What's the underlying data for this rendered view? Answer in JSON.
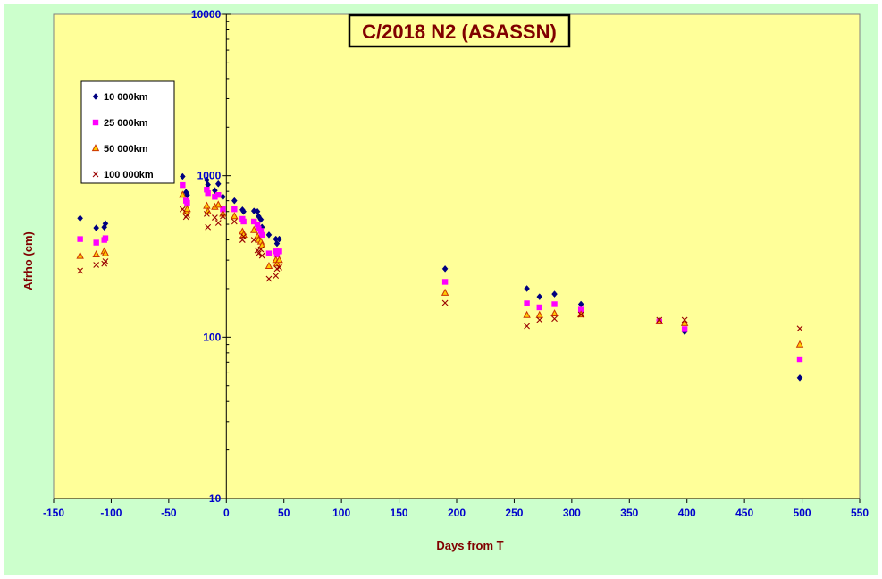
{
  "chart_data": {
    "type": "scatter",
    "title": "C/2018 N2 (ASASSN)",
    "xlabel": "Days from  T",
    "ylabel": "Afrho (cm)",
    "xlim": [
      -150,
      550
    ],
    "ylim": [
      10,
      10000
    ],
    "y_scale": "log",
    "x_ticks": [
      "-150",
      "-100",
      "-50",
      "0",
      "50",
      "100",
      "150",
      "200",
      "250",
      "300",
      "350",
      "400",
      "450",
      "500",
      "550"
    ],
    "y_ticks": [
      "10",
      "100",
      "1000",
      "10000"
    ],
    "grid": false,
    "legend_position": "top-left",
    "colors": {
      "plot_bg": "#ffff99",
      "outer_bg": "#ccffcc",
      "title_color": "#800000",
      "tick_color": "#0000cc"
    },
    "series": [
      {
        "name": "10 000km",
        "marker": "diamond",
        "color": "#000080",
        "points": [
          [
            -127,
            545
          ],
          [
            -113,
            475
          ],
          [
            -106,
            480
          ],
          [
            -105,
            505
          ],
          [
            -38,
            990
          ],
          [
            -35,
            790
          ],
          [
            -34,
            760
          ],
          [
            -17,
            940
          ],
          [
            -16,
            880
          ],
          [
            -10,
            810
          ],
          [
            -7,
            890
          ],
          [
            -3,
            740
          ],
          [
            7,
            700
          ],
          [
            14,
            615
          ],
          [
            15,
            600
          ],
          [
            24,
            605
          ],
          [
            27,
            600
          ],
          [
            28,
            560
          ],
          [
            30,
            535
          ],
          [
            31,
            480
          ],
          [
            37,
            430
          ],
          [
            43,
            405
          ],
          [
            44,
            380
          ],
          [
            46,
            405
          ],
          [
            190,
            265
          ],
          [
            261,
            200
          ],
          [
            272,
            178
          ],
          [
            285,
            185
          ],
          [
            308,
            160
          ],
          [
            376,
            127
          ],
          [
            398,
            108
          ],
          [
            498,
            56
          ]
        ]
      },
      {
        "name": "25 000km",
        "marker": "square",
        "color": "#ff00ff",
        "points": [
          [
            -127,
            405
          ],
          [
            -113,
            385
          ],
          [
            -106,
            400
          ],
          [
            -105,
            410
          ],
          [
            -38,
            875
          ],
          [
            -35,
            700
          ],
          [
            -34,
            680
          ],
          [
            -17,
            820
          ],
          [
            -16,
            780
          ],
          [
            -10,
            740
          ],
          [
            -7,
            760
          ],
          [
            -3,
            620
          ],
          [
            7,
            620
          ],
          [
            14,
            540
          ],
          [
            15,
            520
          ],
          [
            24,
            520
          ],
          [
            27,
            500
          ],
          [
            28,
            470
          ],
          [
            30,
            455
          ],
          [
            31,
            430
          ],
          [
            37,
            330
          ],
          [
            43,
            340
          ],
          [
            44,
            325
          ],
          [
            46,
            340
          ],
          [
            190,
            220
          ],
          [
            261,
            162
          ],
          [
            272,
            153
          ],
          [
            285,
            160
          ],
          [
            308,
            148
          ],
          [
            376,
            125
          ],
          [
            398,
            112
          ],
          [
            498,
            73
          ]
        ]
      },
      {
        "name": "50 000km",
        "marker": "triangle",
        "color": "#cc3300",
        "fill": "#ffcc00",
        "points": [
          [
            -127,
            318
          ],
          [
            -113,
            325
          ],
          [
            -106,
            340
          ],
          [
            -105,
            330
          ],
          [
            -38,
            760
          ],
          [
            -35,
            600
          ],
          [
            -34,
            620
          ],
          [
            -17,
            650
          ],
          [
            -16,
            600
          ],
          [
            -10,
            640
          ],
          [
            -7,
            660
          ],
          [
            -3,
            580
          ],
          [
            7,
            560
          ],
          [
            14,
            450
          ],
          [
            15,
            430
          ],
          [
            24,
            460
          ],
          [
            27,
            420
          ],
          [
            28,
            400
          ],
          [
            30,
            390
          ],
          [
            31,
            370
          ],
          [
            37,
            275
          ],
          [
            43,
            300
          ],
          [
            44,
            285
          ],
          [
            46,
            300
          ],
          [
            190,
            188
          ],
          [
            261,
            137
          ],
          [
            272,
            137
          ],
          [
            285,
            140
          ],
          [
            308,
            138
          ],
          [
            376,
            125
          ],
          [
            398,
            122
          ],
          [
            498,
            90
          ]
        ]
      },
      {
        "name": "100 000km",
        "marker": "x",
        "color": "#990000",
        "points": [
          [
            -127,
            258
          ],
          [
            -113,
            280
          ],
          [
            -106,
            285
          ],
          [
            -105,
            295
          ],
          [
            -38,
            620
          ],
          [
            -35,
            555
          ],
          [
            -34,
            570
          ],
          [
            -17,
            580
          ],
          [
            -16,
            480
          ],
          [
            -10,
            550
          ],
          [
            -7,
            510
          ],
          [
            -3,
            560
          ],
          [
            7,
            520
          ],
          [
            14,
            400
          ],
          [
            15,
            420
          ],
          [
            24,
            400
          ],
          [
            27,
            345
          ],
          [
            28,
            330
          ],
          [
            30,
            350
          ],
          [
            31,
            320
          ],
          [
            37,
            230
          ],
          [
            43,
            240
          ],
          [
            44,
            265
          ],
          [
            46,
            270
          ],
          [
            190,
            163
          ],
          [
            261,
            117
          ],
          [
            272,
            128
          ],
          [
            285,
            130
          ],
          [
            308,
            138
          ],
          [
            376,
            128
          ],
          [
            398,
            128
          ],
          [
            498,
            113
          ]
        ]
      }
    ]
  }
}
